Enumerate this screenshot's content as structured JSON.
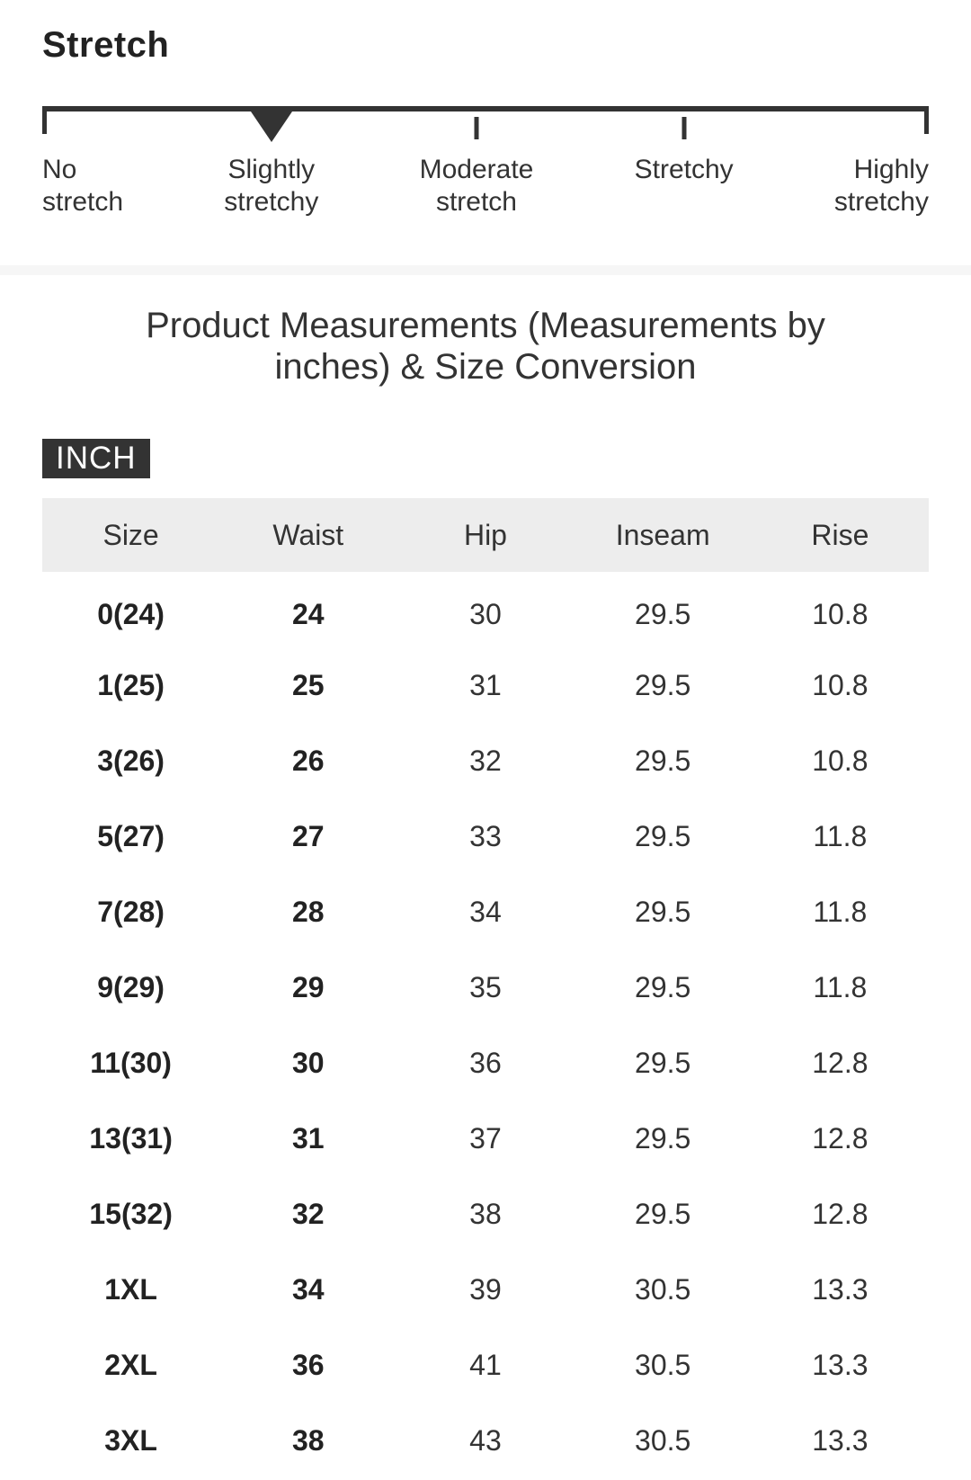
{
  "stretch": {
    "heading": "Stretch",
    "selected_level": "Slightly stretchy",
    "levels": [
      {
        "label": "No stretch",
        "selected": false
      },
      {
        "label": "Slightly stretchy",
        "selected": true
      },
      {
        "label": "Moderate stretch",
        "selected": false
      },
      {
        "label": "Stretchy",
        "selected": false
      },
      {
        "label": "Highly stretchy",
        "selected": false
      }
    ]
  },
  "size_guide": {
    "title": "Product Measurements (Measurements by inches) & Size Conversion",
    "unit_badge": "INCH",
    "table": {
      "columns": [
        "Size",
        "Waist",
        "Hip",
        "Inseam",
        "Rise"
      ],
      "bold_columns": [
        0,
        1
      ],
      "rows": [
        [
          "0(24)",
          "24",
          "30",
          "29.5",
          "10.8"
        ],
        [
          "1(25)",
          "25",
          "31",
          "29.5",
          "10.8"
        ],
        [
          "3(26)",
          "26",
          "32",
          "29.5",
          "10.8"
        ],
        [
          "5(27)",
          "27",
          "33",
          "29.5",
          "11.8"
        ],
        [
          "7(28)",
          "28",
          "34",
          "29.5",
          "11.8"
        ],
        [
          "9(29)",
          "29",
          "35",
          "29.5",
          "11.8"
        ],
        [
          "11(30)",
          "30",
          "36",
          "29.5",
          "12.8"
        ],
        [
          "13(31)",
          "31",
          "37",
          "29.5",
          "12.8"
        ],
        [
          "15(32)",
          "32",
          "38",
          "29.5",
          "12.8"
        ],
        [
          "1XL",
          "34",
          "39",
          "30.5",
          "13.3"
        ],
        [
          "2XL",
          "36",
          "41",
          "30.5",
          "13.3"
        ],
        [
          "3XL",
          "38",
          "43",
          "30.5",
          "13.3"
        ]
      ]
    }
  },
  "colors": {
    "text_primary": "#333333",
    "heading": "#222222",
    "scale_ink": "#333333",
    "divider": "#f6f6f6",
    "header_band": "#ededed",
    "badge_bg": "#333333",
    "badge_text": "#ffffff"
  }
}
